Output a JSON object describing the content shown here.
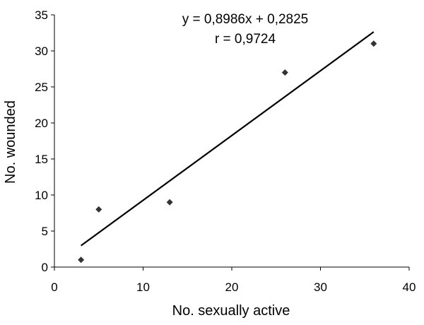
{
  "chart_data": {
    "type": "scatter",
    "title": "",
    "xlabel": "No. sexually active",
    "ylabel": "No. wounded",
    "xlim": [
      0,
      40
    ],
    "ylim": [
      0,
      35
    ],
    "x_ticks": [
      0,
      10,
      20,
      30,
      40
    ],
    "y_ticks": [
      0,
      5,
      10,
      15,
      20,
      25,
      30,
      35
    ],
    "grid": false,
    "legend": "none",
    "marker": "diamond",
    "marker_color": "#333333",
    "points": [
      {
        "x": 3,
        "y": 1
      },
      {
        "x": 5,
        "y": 8
      },
      {
        "x": 13,
        "y": 9
      },
      {
        "x": 26,
        "y": 27
      },
      {
        "x": 36,
        "y": 31
      }
    ],
    "trendline": {
      "slope": 0.8986,
      "intercept": 0.2825,
      "x_range": [
        3,
        36
      ],
      "equation_label": "y = 0,8986x + 0,2825",
      "r_label": "r = 0,9724"
    }
  }
}
